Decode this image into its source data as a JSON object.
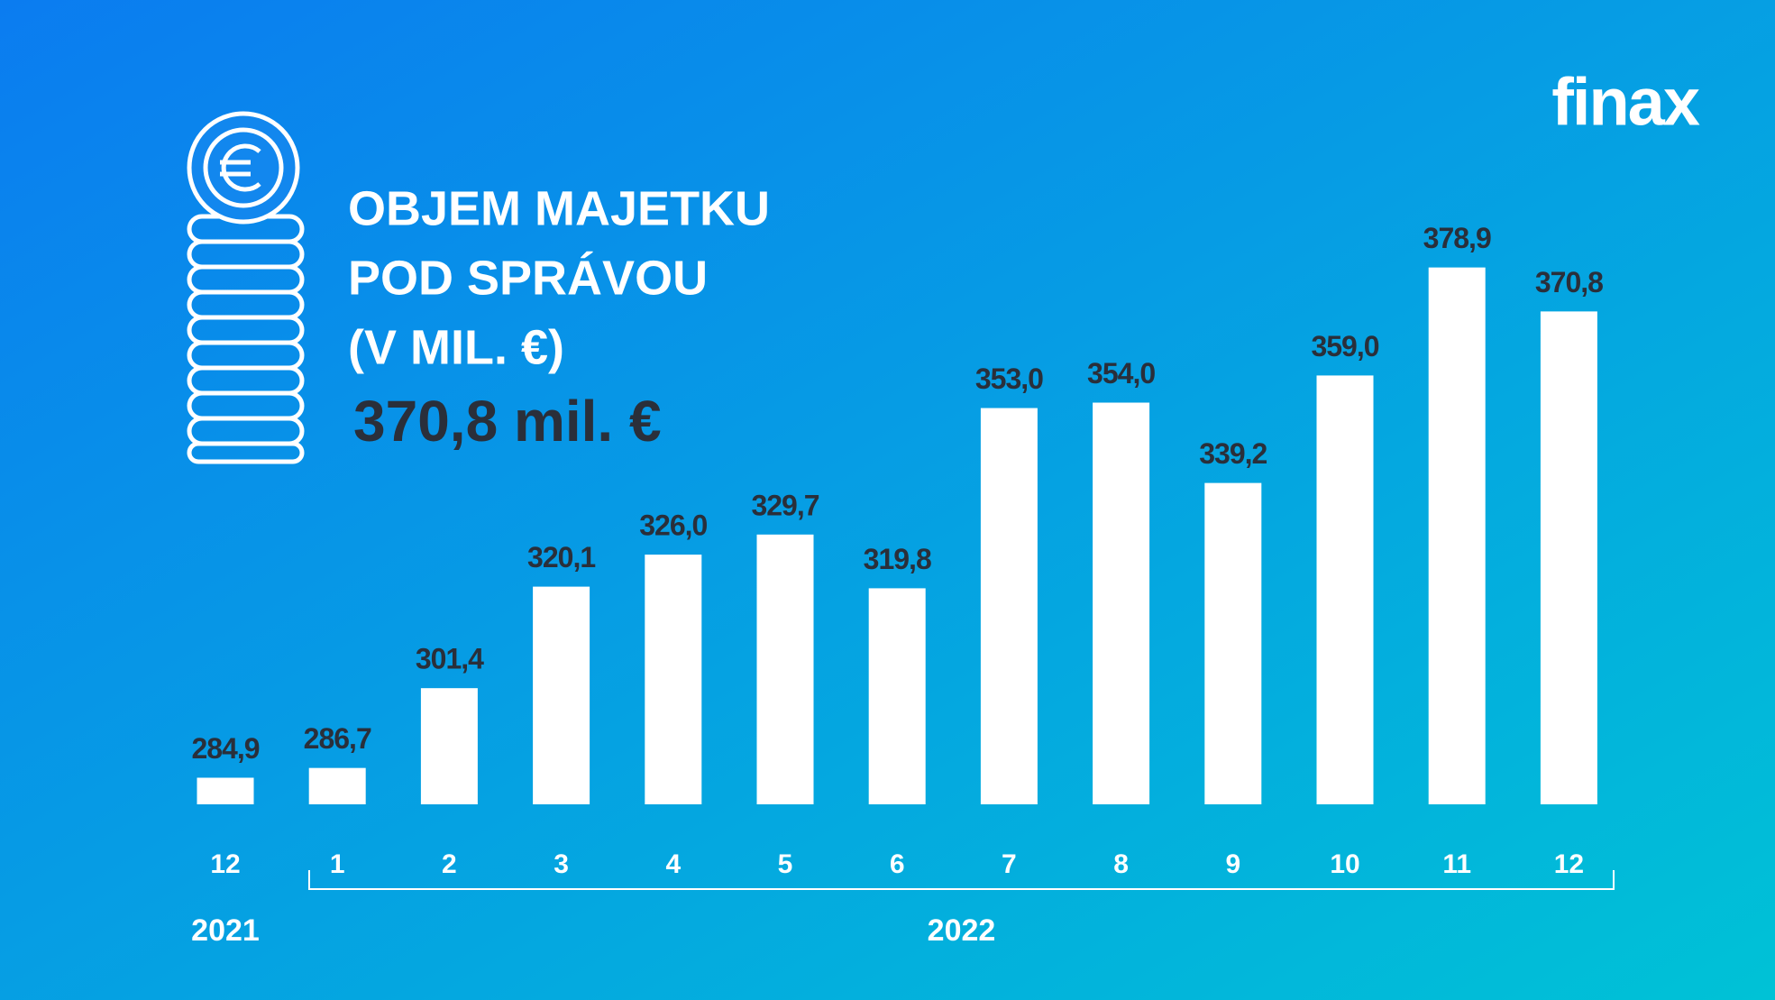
{
  "chart_data": {
    "type": "bar",
    "title_lines": [
      "OBJEM MAJETKU",
      "POD SPRÁVOU",
      "(V MIL. €)"
    ],
    "subtitle": "370,8 mil. €",
    "categories": [
      "12",
      "1",
      "2",
      "3",
      "4",
      "5",
      "6",
      "7",
      "8",
      "9",
      "10",
      "11",
      "12"
    ],
    "values": [
      284.9,
      286.7,
      301.4,
      320.1,
      326.0,
      329.7,
      319.8,
      353.0,
      354.0,
      339.2,
      359.0,
      378.9,
      370.8
    ],
    "value_labels": [
      "284,9",
      "286,7",
      "301,4",
      "320,1",
      "326,0",
      "329,7",
      "319,8",
      "353,0",
      "354,0",
      "339,2",
      "359,0",
      "378,9",
      "370,8"
    ],
    "color": "#ffffff",
    "ylim": [
      280,
      380
    ],
    "group_labels": [
      "2021",
      "2022"
    ]
  },
  "logo": "finax"
}
